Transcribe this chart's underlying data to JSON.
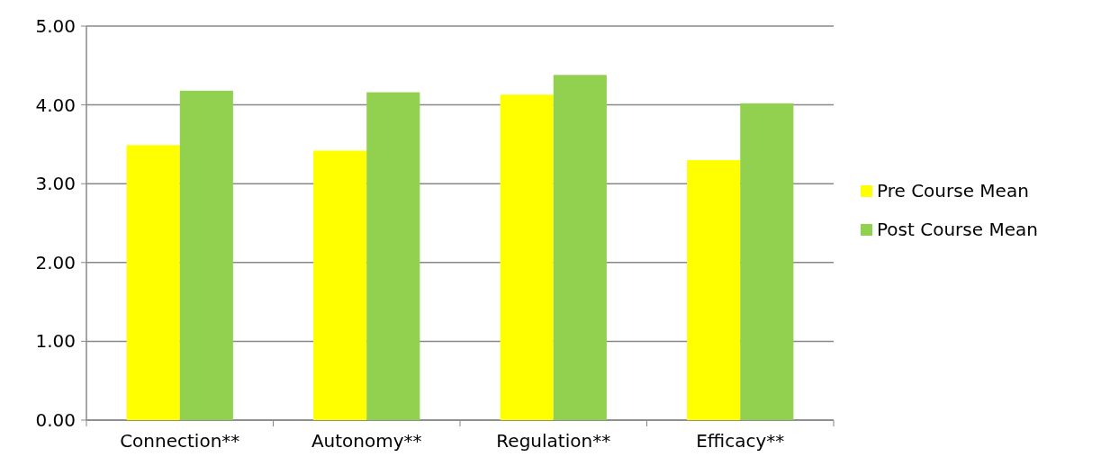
{
  "chart_data": {
    "type": "bar",
    "categories": [
      "Connection**",
      "Autonomy**",
      "Regulation**",
      "Efficacy**"
    ],
    "series": [
      {
        "name": "Pre Course Mean",
        "color": "#ffff00",
        "values": [
          3.49,
          3.42,
          4.13,
          3.3
        ]
      },
      {
        "name": "Post Course Mean",
        "color": "#92d050",
        "values": [
          4.18,
          4.16,
          4.38,
          4.02
        ]
      }
    ],
    "ylim": [
      0,
      5
    ],
    "yticks": [
      {
        "value": 0,
        "label": "0.00"
      },
      {
        "value": 1,
        "label": "1.00"
      },
      {
        "value": 2,
        "label": "2.00"
      },
      {
        "value": 3,
        "label": "3.00"
      },
      {
        "value": 4,
        "label": "4.00"
      },
      {
        "value": 5,
        "label": "5.00"
      }
    ],
    "grid": "y",
    "legend": "right"
  }
}
